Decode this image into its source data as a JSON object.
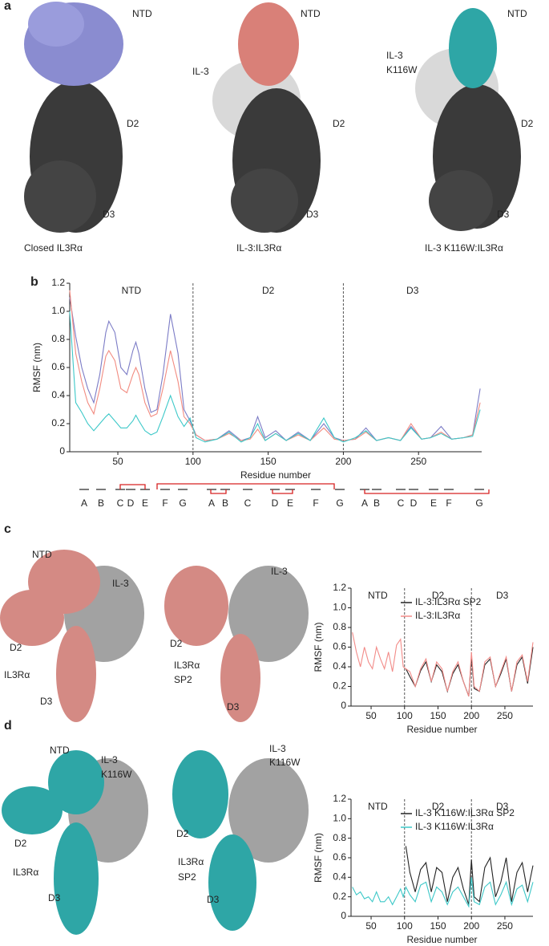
{
  "figure": {
    "panel_labels": [
      "a",
      "b",
      "c",
      "d"
    ],
    "structure_labels": [
      "NTD",
      "D2",
      "D3",
      "Closed IL3Rα",
      "NTD",
      "IL-3",
      "D2",
      "D3",
      "IL-3:IL3Rα",
      "NTD",
      "IL-3",
      "K116W",
      "D2",
      "D3",
      "IL-3 K116W:IL3Rα",
      "NTD",
      "IL-3",
      "D2",
      "IL3Rα",
      "D3",
      "IL-3",
      "D2",
      "IL3Rα",
      "SP2",
      "D3",
      "NTD",
      "IL-3",
      "K116W",
      "D2",
      "IL3Rα",
      "D3",
      "IL-3",
      "K116W",
      "D2",
      "IL3Rα",
      "SP2",
      "D3"
    ],
    "strand_labels": [
      "A",
      "B",
      "C",
      "D",
      "E",
      "F",
      "G",
      "A",
      "B",
      "C",
      "D",
      "E",
      "F",
      "G",
      "A",
      "B",
      "C",
      "D",
      "E",
      "F",
      "G"
    ]
  },
  "chart_data": [
    {
      "type": "line",
      "xlabel": "Residue number",
      "ylabel": "RMSF (nm)",
      "x": [
        18,
        22,
        26,
        30,
        34,
        38,
        42,
        44,
        48,
        52,
        56,
        60,
        62,
        64,
        68,
        72,
        76,
        80,
        85,
        90,
        94,
        98,
        102,
        108,
        116,
        124,
        132,
        138,
        143,
        148,
        155,
        162,
        170,
        178,
        187,
        194,
        200,
        208,
        215,
        222,
        230,
        238,
        245,
        252,
        258,
        265,
        272,
        280,
        286,
        291
      ],
      "series": [
        {
          "color": "#7c7cc6",
          "values": [
            1.1,
            0.82,
            0.6,
            0.45,
            0.35,
            0.55,
            0.85,
            0.93,
            0.85,
            0.6,
            0.55,
            0.72,
            0.78,
            0.7,
            0.45,
            0.28,
            0.3,
            0.55,
            0.98,
            0.7,
            0.3,
            0.22,
            0.12,
            0.08,
            0.09,
            0.15,
            0.08,
            0.1,
            0.25,
            0.1,
            0.15,
            0.08,
            0.14,
            0.08,
            0.2,
            0.1,
            0.08,
            0.09,
            0.17,
            0.08,
            0.1,
            0.08,
            0.18,
            0.09,
            0.1,
            0.18,
            0.09,
            0.1,
            0.12,
            0.45
          ]
        },
        {
          "color": "#f28b80",
          "values": [
            1.15,
            0.7,
            0.5,
            0.35,
            0.27,
            0.45,
            0.68,
            0.72,
            0.65,
            0.45,
            0.42,
            0.55,
            0.6,
            0.55,
            0.35,
            0.25,
            0.27,
            0.45,
            0.72,
            0.5,
            0.25,
            0.2,
            0.12,
            0.08,
            0.09,
            0.13,
            0.08,
            0.09,
            0.16,
            0.08,
            0.13,
            0.08,
            0.12,
            0.08,
            0.17,
            0.09,
            0.08,
            0.09,
            0.14,
            0.08,
            0.1,
            0.08,
            0.2,
            0.09,
            0.1,
            0.14,
            0.09,
            0.1,
            0.12,
            0.35
          ]
        },
        {
          "color": "#3cc8c8",
          "values": [
            1.0,
            0.35,
            0.28,
            0.2,
            0.15,
            0.2,
            0.25,
            0.27,
            0.22,
            0.17,
            0.17,
            0.22,
            0.26,
            0.22,
            0.15,
            0.12,
            0.14,
            0.25,
            0.4,
            0.25,
            0.18,
            0.24,
            0.1,
            0.07,
            0.09,
            0.14,
            0.07,
            0.1,
            0.2,
            0.08,
            0.13,
            0.08,
            0.13,
            0.08,
            0.24,
            0.1,
            0.07,
            0.1,
            0.15,
            0.08,
            0.1,
            0.08,
            0.17,
            0.09,
            0.1,
            0.13,
            0.09,
            0.1,
            0.11,
            0.3
          ]
        }
      ],
      "xlim": [
        18,
        292
      ],
      "ylim": [
        0,
        1.2
      ],
      "xticks": [
        50,
        100,
        150,
        200,
        250
      ],
      "yticks": [
        0,
        0.2,
        0.4,
        0.6,
        0.8,
        {
          "value": 1,
          "label": "1.0"
        },
        1.2
      ],
      "vlines": [
        100,
        200
      ],
      "domain_labels": [
        "NTD",
        "D2",
        "D3"
      ]
    },
    {
      "type": "line",
      "xlabel": "Residue number",
      "ylabel": "RMSF (nm)",
      "legend": "upper right",
      "x": [
        22,
        28,
        34,
        40,
        46,
        52,
        58,
        64,
        70,
        76,
        82,
        88,
        94,
        98,
        102,
        108,
        116,
        124,
        132,
        140,
        148,
        156,
        164,
        172,
        180,
        188,
        196,
        200,
        204,
        212,
        220,
        228,
        236,
        244,
        252,
        260,
        268,
        276,
        284,
        292
      ],
      "series": [
        {
          "name": "IL-3:IL3Rα SP2",
          "color": "#222222",
          "values": [
            null,
            null,
            null,
            null,
            null,
            null,
            null,
            null,
            null,
            null,
            null,
            null,
            null,
            null,
            0.38,
            0.3,
            0.2,
            0.36,
            0.45,
            0.25,
            0.42,
            0.35,
            0.15,
            0.33,
            0.42,
            0.25,
            0.1,
            0.5,
            0.18,
            0.15,
            0.42,
            0.48,
            0.2,
            0.33,
            0.48,
            0.15,
            0.42,
            0.5,
            0.23,
            0.6
          ]
        },
        {
          "name": "IL-3:IL3Rα",
          "color": "#f28b88",
          "values": [
            0.75,
            0.55,
            0.4,
            0.6,
            0.45,
            0.38,
            0.6,
            0.48,
            0.38,
            0.55,
            0.35,
            0.62,
            0.68,
            0.4,
            0.38,
            0.35,
            0.2,
            0.38,
            0.48,
            0.25,
            0.45,
            0.38,
            0.15,
            0.35,
            0.45,
            0.25,
            0.1,
            0.55,
            0.2,
            0.15,
            0.45,
            0.5,
            0.2,
            0.35,
            0.5,
            0.15,
            0.45,
            0.52,
            0.25,
            0.65
          ]
        }
      ],
      "xlim": [
        20,
        292
      ],
      "ylim": [
        0,
        1.2
      ],
      "xticks": [
        50,
        100,
        150,
        200,
        250
      ],
      "yticks": [
        0,
        0.2,
        0.4,
        0.6,
        0.8,
        {
          "value": 1,
          "label": "1.0"
        },
        1.2
      ],
      "vlines": [
        100,
        200
      ],
      "domain_labels": [
        "NTD",
        "D2",
        "D3"
      ]
    },
    {
      "type": "line",
      "xlabel": "Residue number",
      "ylabel": "RMSF (nm)",
      "legend": "upper right",
      "x": [
        22,
        28,
        34,
        40,
        46,
        52,
        58,
        64,
        70,
        76,
        82,
        88,
        94,
        98,
        102,
        108,
        116,
        124,
        132,
        140,
        148,
        156,
        164,
        172,
        180,
        188,
        196,
        200,
        204,
        212,
        220,
        228,
        236,
        244,
        252,
        260,
        268,
        276,
        284,
        292
      ],
      "series": [
        {
          "name": "IL-3 K116W:IL3Rα SP2",
          "color": "#222222",
          "values": [
            null,
            null,
            null,
            null,
            null,
            null,
            null,
            null,
            null,
            null,
            null,
            null,
            null,
            null,
            0.72,
            0.45,
            0.25,
            0.48,
            0.55,
            0.25,
            0.5,
            0.45,
            0.15,
            0.4,
            0.5,
            0.28,
            0.12,
            0.58,
            0.2,
            0.15,
            0.5,
            0.6,
            0.2,
            0.35,
            0.6,
            0.15,
            0.45,
            0.55,
            0.25,
            0.52
          ]
        },
        {
          "name": "IL-3 K116W:IL3Rα",
          "color": "#3cc8c8",
          "values": [
            0.3,
            0.22,
            0.25,
            0.18,
            0.2,
            0.15,
            0.25,
            0.15,
            0.15,
            0.2,
            0.12,
            0.2,
            0.28,
            0.2,
            0.3,
            0.22,
            0.15,
            0.32,
            0.35,
            0.15,
            0.3,
            0.25,
            0.12,
            0.25,
            0.3,
            0.2,
            0.1,
            0.4,
            0.15,
            0.12,
            0.3,
            0.35,
            0.12,
            0.22,
            0.35,
            0.12,
            0.28,
            0.32,
            0.15,
            0.35
          ]
        }
      ],
      "xlim": [
        20,
        292
      ],
      "ylim": [
        0,
        1.2
      ],
      "xticks": [
        50,
        100,
        150,
        200,
        250
      ],
      "yticks": [
        0,
        0.2,
        0.4,
        0.6,
        0.8,
        {
          "value": 1,
          "label": "1.0"
        },
        1.2
      ],
      "vlines": [
        100,
        200
      ],
      "domain_labels": [
        "NTD",
        "D2",
        "D3"
      ]
    }
  ]
}
